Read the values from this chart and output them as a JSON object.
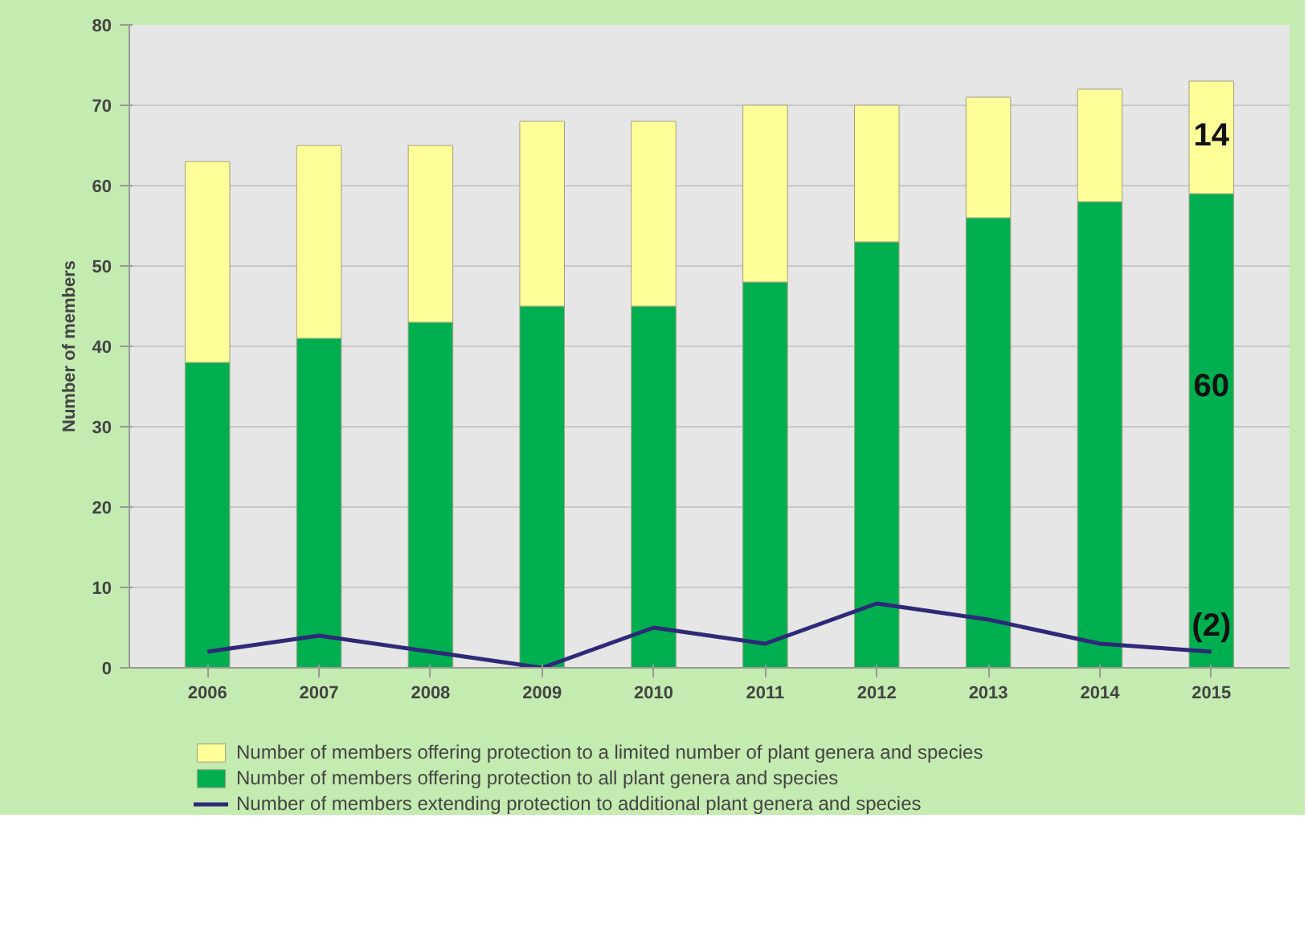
{
  "chart_data": {
    "type": "bar",
    "stacked": true,
    "ylabel": "Number of members",
    "categories": [
      "2006",
      "2007",
      "2008",
      "2009",
      "2010",
      "2011",
      "2012",
      "2013",
      "2014",
      "2015"
    ],
    "series": [
      {
        "name": "Number of members offering protection to all plant genera and species",
        "color": "#00b050",
        "values": [
          38,
          41,
          43,
          45,
          45,
          48,
          53,
          56,
          58,
          59
        ]
      },
      {
        "name": "Number of members offering protection to a limited number of plant genera and species",
        "color": "#ffff99",
        "values": [
          25,
          24,
          22,
          23,
          23,
          22,
          17,
          15,
          14,
          14
        ]
      },
      {
        "name": "Number of members extending protection to additional plant genera and species",
        "color": "#2e2a78",
        "type": "line",
        "values": [
          2,
          4,
          2,
          0,
          5,
          3,
          8,
          6,
          3,
          2
        ]
      }
    ],
    "ylim": [
      0,
      80
    ],
    "yticks": [
      0,
      10,
      20,
      30,
      40,
      50,
      60,
      70,
      80
    ],
    "grid": "y",
    "legend": "bottom",
    "marker": "none",
    "line_style": "solid",
    "annotations": [
      "14",
      "60",
      "(2)"
    ]
  }
}
